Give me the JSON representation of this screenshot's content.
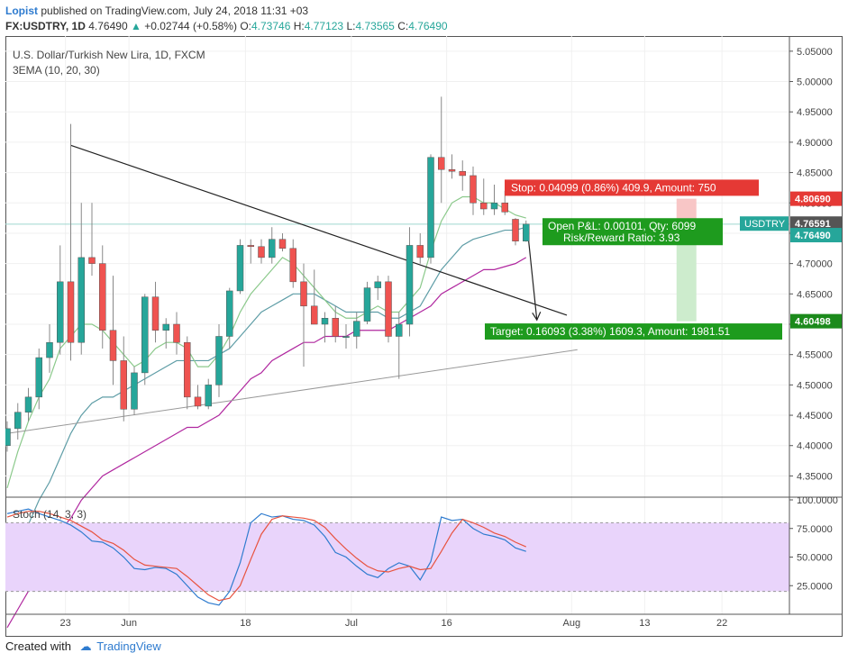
{
  "header": {
    "author": "Lopist",
    "published": "published on TradingView.com, July 24, 2018 11:31 +03",
    "symbol": "FX:USDTRY, 1D",
    "last": "4.76490",
    "change": "+0.02744 (+0.58%)",
    "o_label": "O:",
    "o": "4.73746",
    "h_label": "H:",
    "h": "4.77123",
    "l_label": "L:",
    "l": "4.73565",
    "c_label": "C:",
    "c": "4.76490"
  },
  "legend": {
    "title": "U.S. Dollar/Turkish New Lira, 1D, FXCM",
    "indicator": "3EMA (10, 20, 30)",
    "stoch": "Stoch (14, 3, 3)"
  },
  "footer": {
    "created_with": "Created with",
    "brand": "TradingView"
  },
  "annotations": {
    "stop": "Stop: 0.04099 (0.86%) 409.9, Amount: 750",
    "pnl_line1": "Open P&L: 0.00101, Qty: 6099",
    "pnl_line2": "Risk/Reward Ratio: 3.93",
    "target": "Target: 0.16093 (3.38%) 1609.3, Amount: 1981.51"
  },
  "price_tags": {
    "stop": "4.80690",
    "current": "4.76591",
    "symbol": "USDTRY",
    "last": "4.76490",
    "target": "4.60498"
  },
  "colors": {
    "up": "#26a69a",
    "down": "#ef5350",
    "ema10": "#8bc98b",
    "ema20": "#5e9da6",
    "ema30": "#b0279f",
    "stoch_k": "#2e7bcf",
    "stoch_d": "#e8533f",
    "stop_zone": "#f8c6c6",
    "target_zone": "#cdeccd"
  },
  "chart_data": {
    "type": "candlestick",
    "y_axis_labels": [
      "5.05000",
      "5.00000",
      "4.95000",
      "4.90000",
      "4.85000",
      "4.80000",
      "4.75000",
      "4.70000",
      "4.65000",
      "4.60000",
      "4.55000",
      "4.50000",
      "4.45000",
      "4.40000",
      "4.35000"
    ],
    "ylim": [
      4.315,
      5.075
    ],
    "stoch_axis_labels": [
      "100.0000",
      "75.0000",
      "50.0000",
      "25.0000"
    ],
    "stoch_ylim": [
      0,
      100
    ],
    "stoch_band": [
      20,
      80
    ],
    "x_tick_labels": [
      "23",
      "Jun",
      "18",
      "Jul",
      "16",
      "Aug",
      "13",
      "22"
    ],
    "candles": [
      {
        "o": 4.4,
        "h": 4.44,
        "l": 4.39,
        "c": 4.428
      },
      {
        "o": 4.428,
        "h": 4.47,
        "l": 4.41,
        "c": 4.455
      },
      {
        "o": 4.455,
        "h": 4.495,
        "l": 4.44,
        "c": 4.48
      },
      {
        "o": 4.48,
        "h": 4.56,
        "l": 4.46,
        "c": 4.545
      },
      {
        "o": 4.545,
        "h": 4.6,
        "l": 4.52,
        "c": 4.57
      },
      {
        "o": 4.57,
        "h": 4.73,
        "l": 4.55,
        "c": 4.67
      },
      {
        "o": 4.67,
        "h": 4.93,
        "l": 4.54,
        "c": 4.57
      },
      {
        "o": 4.57,
        "h": 4.8,
        "l": 4.55,
        "c": 4.71
      },
      {
        "o": 4.71,
        "h": 4.8,
        "l": 4.68,
        "c": 4.7
      },
      {
        "o": 4.7,
        "h": 4.73,
        "l": 4.56,
        "c": 4.59
      },
      {
        "o": 4.59,
        "h": 4.68,
        "l": 4.5,
        "c": 4.54
      },
      {
        "o": 4.54,
        "h": 4.58,
        "l": 4.44,
        "c": 4.46
      },
      {
        "o": 4.46,
        "h": 4.53,
        "l": 4.45,
        "c": 4.52
      },
      {
        "o": 4.52,
        "h": 4.65,
        "l": 4.5,
        "c": 4.645
      },
      {
        "o": 4.645,
        "h": 4.67,
        "l": 4.57,
        "c": 4.59
      },
      {
        "o": 4.59,
        "h": 4.61,
        "l": 4.56,
        "c": 4.6
      },
      {
        "o": 4.6,
        "h": 4.62,
        "l": 4.55,
        "c": 4.57
      },
      {
        "o": 4.57,
        "h": 4.58,
        "l": 4.46,
        "c": 4.48
      },
      {
        "o": 4.48,
        "h": 4.5,
        "l": 4.46,
        "c": 4.465
      },
      {
        "o": 4.465,
        "h": 4.51,
        "l": 4.46,
        "c": 4.5
      },
      {
        "o": 4.5,
        "h": 4.6,
        "l": 4.48,
        "c": 4.58
      },
      {
        "o": 4.58,
        "h": 4.66,
        "l": 4.56,
        "c": 4.655
      },
      {
        "o": 4.655,
        "h": 4.74,
        "l": 4.65,
        "c": 4.73
      },
      {
        "o": 4.73,
        "h": 4.74,
        "l": 4.7,
        "c": 4.728
      },
      {
        "o": 4.728,
        "h": 4.74,
        "l": 4.7,
        "c": 4.71
      },
      {
        "o": 4.71,
        "h": 4.76,
        "l": 4.7,
        "c": 4.74
      },
      {
        "o": 4.74,
        "h": 4.75,
        "l": 4.72,
        "c": 4.725
      },
      {
        "o": 4.725,
        "h": 4.74,
        "l": 4.66,
        "c": 4.67
      },
      {
        "o": 4.67,
        "h": 4.7,
        "l": 4.53,
        "c": 4.63
      },
      {
        "o": 4.63,
        "h": 4.69,
        "l": 4.6,
        "c": 4.6
      },
      {
        "o": 4.6,
        "h": 4.62,
        "l": 4.57,
        "c": 4.61
      },
      {
        "o": 4.61,
        "h": 4.63,
        "l": 4.57,
        "c": 4.58
      },
      {
        "o": 4.58,
        "h": 4.6,
        "l": 4.56,
        "c": 4.58
      },
      {
        "o": 4.58,
        "h": 4.62,
        "l": 4.56,
        "c": 4.605
      },
      {
        "o": 4.605,
        "h": 4.67,
        "l": 4.6,
        "c": 4.66
      },
      {
        "o": 4.66,
        "h": 4.68,
        "l": 4.64,
        "c": 4.67
      },
      {
        "o": 4.67,
        "h": 4.68,
        "l": 4.57,
        "c": 4.58
      },
      {
        "o": 4.58,
        "h": 4.62,
        "l": 4.51,
        "c": 4.6
      },
      {
        "o": 4.6,
        "h": 4.76,
        "l": 4.58,
        "c": 4.73
      },
      {
        "o": 4.73,
        "h": 4.75,
        "l": 4.7,
        "c": 4.71
      },
      {
        "o": 4.71,
        "h": 4.88,
        "l": 4.7,
        "c": 4.875
      },
      {
        "o": 4.875,
        "h": 4.975,
        "l": 4.8,
        "c": 4.855
      },
      {
        "o": 4.855,
        "h": 4.88,
        "l": 4.84,
        "c": 4.852
      },
      {
        "o": 4.852,
        "h": 4.87,
        "l": 4.82,
        "c": 4.845
      },
      {
        "o": 4.845,
        "h": 4.86,
        "l": 4.78,
        "c": 4.8
      },
      {
        "o": 4.8,
        "h": 4.84,
        "l": 4.78,
        "c": 4.79
      },
      {
        "o": 4.79,
        "h": 4.83,
        "l": 4.78,
        "c": 4.8
      },
      {
        "o": 4.8,
        "h": 4.82,
        "l": 4.78,
        "c": 4.785
      },
      {
        "o": 4.773,
        "h": 4.775,
        "l": 4.73,
        "c": 4.737
      },
      {
        "o": 4.737,
        "h": 4.771,
        "l": 4.736,
        "c": 4.765
      }
    ],
    "ema10": [
      4.33,
      4.39,
      4.44,
      4.48,
      4.51,
      4.56,
      4.58,
      4.6,
      4.6,
      4.59,
      4.57,
      4.55,
      4.53,
      4.54,
      4.56,
      4.57,
      4.57,
      4.56,
      4.53,
      4.53,
      4.55,
      4.58,
      4.62,
      4.65,
      4.67,
      4.69,
      4.71,
      4.7,
      4.68,
      4.66,
      4.64,
      4.62,
      4.61,
      4.61,
      4.62,
      4.63,
      4.62,
      4.62,
      4.64,
      4.66,
      4.72,
      4.77,
      4.8,
      4.81,
      4.81,
      4.8,
      4.8,
      4.79,
      4.78,
      4.775
    ],
    "ema20": [
      4.2,
      4.23,
      4.27,
      4.31,
      4.34,
      4.38,
      4.42,
      4.45,
      4.47,
      4.48,
      4.48,
      4.49,
      4.5,
      4.51,
      4.52,
      4.53,
      4.54,
      4.54,
      4.54,
      4.54,
      4.55,
      4.56,
      4.58,
      4.6,
      4.62,
      4.63,
      4.64,
      4.65,
      4.65,
      4.65,
      4.64,
      4.63,
      4.62,
      4.62,
      4.62,
      4.62,
      4.61,
      4.61,
      4.62,
      4.63,
      4.66,
      4.69,
      4.71,
      4.73,
      4.74,
      4.745,
      4.75,
      4.755,
      4.755,
      4.76
    ],
    "ema30": [
      4.1,
      4.13,
      4.16,
      4.19,
      4.22,
      4.26,
      4.28,
      4.31,
      4.33,
      4.35,
      4.36,
      4.37,
      4.38,
      4.39,
      4.4,
      4.41,
      4.42,
      4.43,
      4.43,
      4.44,
      4.45,
      4.47,
      4.49,
      4.51,
      4.52,
      4.54,
      4.55,
      4.56,
      4.57,
      4.57,
      4.58,
      4.58,
      4.58,
      4.59,
      4.59,
      4.59,
      4.59,
      4.6,
      4.61,
      4.62,
      4.63,
      4.65,
      4.66,
      4.67,
      4.68,
      4.69,
      4.69,
      4.695,
      4.7,
      4.71
    ],
    "stoch_k": [
      88,
      90,
      92,
      88,
      85,
      82,
      78,
      72,
      64,
      63,
      58,
      50,
      40,
      39,
      41,
      40,
      35,
      25,
      15,
      10,
      8,
      20,
      45,
      80,
      88,
      85,
      86,
      83,
      82,
      78,
      68,
      54,
      50,
      42,
      35,
      32,
      40,
      45,
      42,
      30,
      46,
      85,
      82,
      83,
      75,
      70,
      68,
      65,
      58,
      55
    ],
    "stoch_d": [
      85,
      88,
      90,
      90,
      88,
      85,
      82,
      77,
      72,
      65,
      62,
      56,
      48,
      43,
      42,
      41,
      40,
      33,
      25,
      17,
      12,
      14,
      25,
      48,
      70,
      83,
      86,
      85,
      84,
      82,
      76,
      66,
      57,
      49,
      42,
      38,
      37,
      40,
      42,
      39,
      40,
      55,
      71,
      83,
      80,
      76,
      71,
      68,
      63,
      59
    ],
    "trendline_down": {
      "from_index": 6,
      "from_price": 4.895,
      "to_index": 52,
      "to_price": 4.615
    },
    "trendline_up": {
      "from_index": 0,
      "from_price": 4.42,
      "to_index": 53,
      "to_price": 4.558
    },
    "position": {
      "entry": 4.7649,
      "stop": 4.8069,
      "target": 4.605,
      "start_index": 53,
      "end_index": 58
    }
  }
}
